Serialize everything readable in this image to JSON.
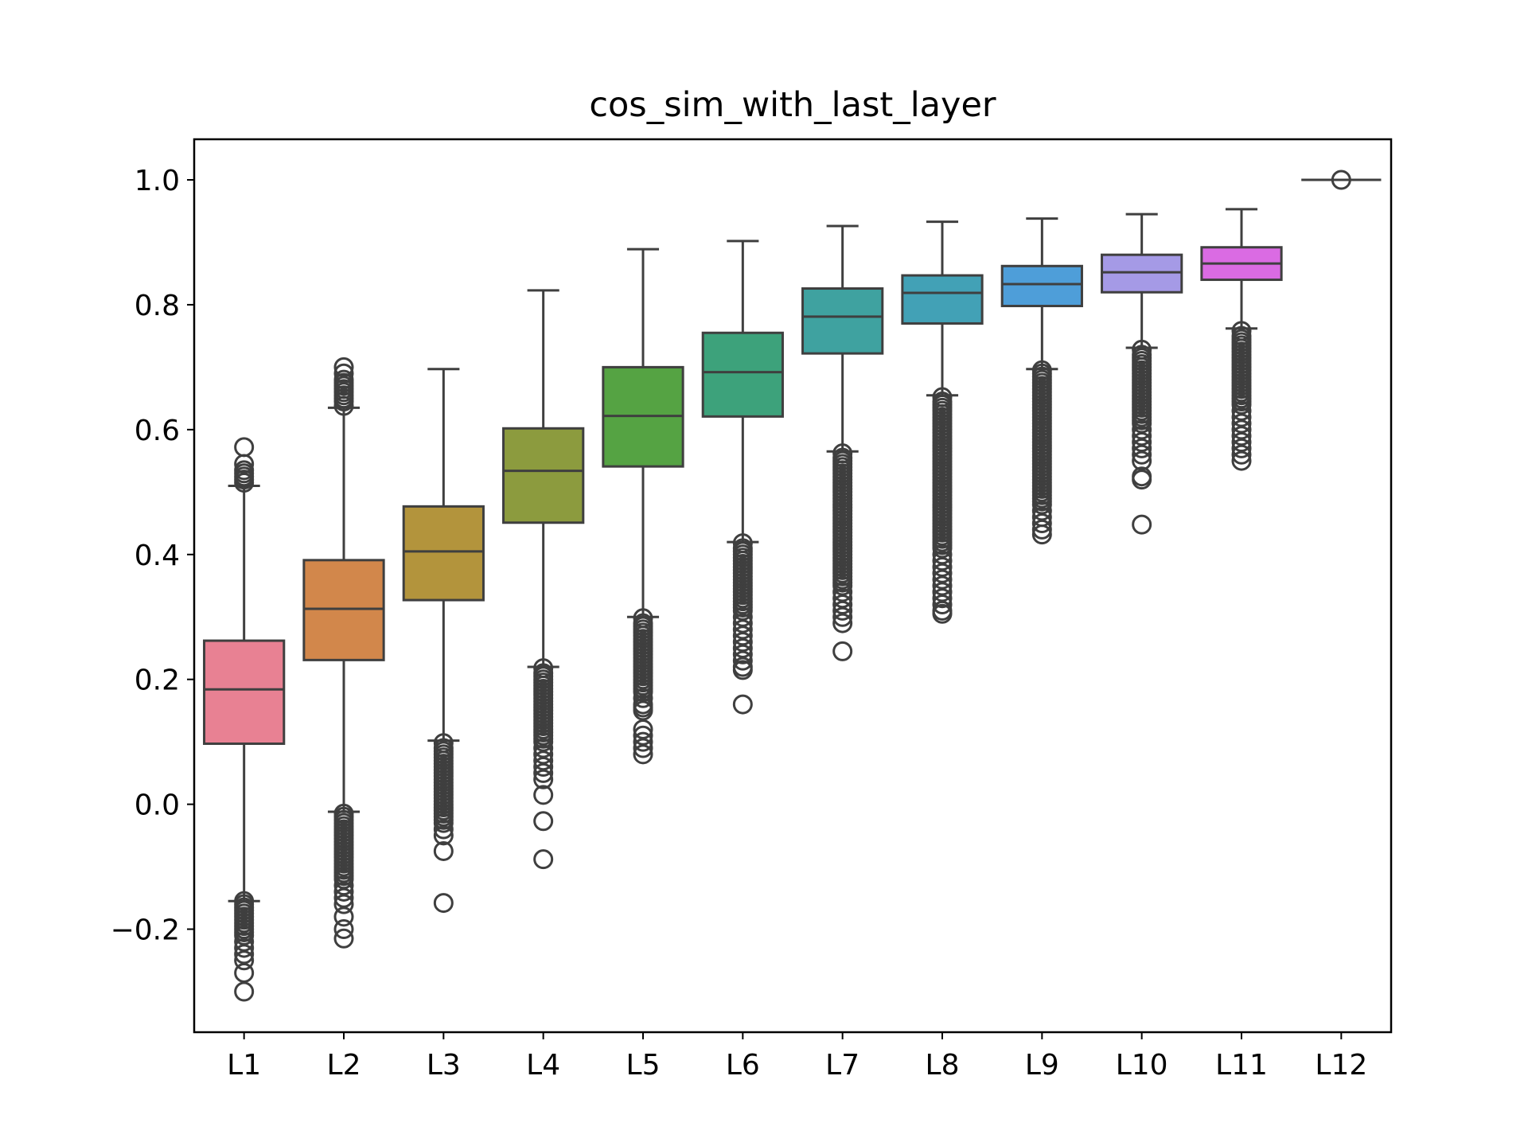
{
  "chart_data": {
    "type": "box",
    "title": "cos_sim_with_last_layer",
    "xlabel": "",
    "ylabel": "",
    "ylim": [
      -0.365,
      1.065
    ],
    "yticks": [
      -0.2,
      0.0,
      0.2,
      0.4,
      0.6,
      0.8,
      1.0
    ],
    "ytick_labels": [
      "−0.2",
      "0.0",
      "0.2",
      "0.4",
      "0.6",
      "0.8",
      "1.0"
    ],
    "grid": false,
    "legend": "none",
    "categories": [
      "L1",
      "L2",
      "L3",
      "L4",
      "L5",
      "L6",
      "L7",
      "L8",
      "L9",
      "L10",
      "L11",
      "L12"
    ],
    "boxes": [
      {
        "name": "L1",
        "color": "#e88193",
        "whislo": -0.155,
        "q1": 0.097,
        "med": 0.184,
        "q3": 0.262,
        "whishi": 0.51,
        "fliers_low": [
          -0.155,
          -0.16,
          -0.165,
          -0.17,
          -0.175,
          -0.18,
          -0.185,
          -0.19,
          -0.195,
          -0.2,
          -0.205,
          -0.21,
          -0.22,
          -0.23,
          -0.24,
          -0.25,
          -0.27,
          -0.3
        ],
        "fliers_high": [
          0.515,
          0.52,
          0.525,
          0.53,
          0.535,
          0.545,
          0.572
        ]
      },
      {
        "name": "L2",
        "color": "#d2874b",
        "whislo": -0.012,
        "q1": 0.231,
        "med": 0.313,
        "q3": 0.391,
        "whishi": 0.635,
        "fliers_low": [
          -0.015,
          -0.02,
          -0.025,
          -0.03,
          -0.035,
          -0.04,
          -0.045,
          -0.05,
          -0.055,
          -0.06,
          -0.065,
          -0.07,
          -0.075,
          -0.08,
          -0.085,
          -0.09,
          -0.095,
          -0.1,
          -0.105,
          -0.11,
          -0.115,
          -0.12,
          -0.13,
          -0.14,
          -0.15,
          -0.16,
          -0.18,
          -0.2,
          -0.215
        ],
        "fliers_high": [
          0.638,
          0.645,
          0.65,
          0.655,
          0.66,
          0.665,
          0.67,
          0.675,
          0.68,
          0.69,
          0.7
        ]
      },
      {
        "name": "L3",
        "color": "#b3943c",
        "whislo": 0.102,
        "q1": 0.327,
        "med": 0.405,
        "q3": 0.477,
        "whishi": 0.697,
        "fliers_low": [
          0.098,
          0.09,
          0.085,
          0.08,
          0.075,
          0.07,
          0.065,
          0.06,
          0.055,
          0.05,
          0.045,
          0.04,
          0.035,
          0.03,
          0.025,
          0.02,
          0.015,
          0.01,
          0.005,
          0.0,
          -0.005,
          -0.01,
          -0.015,
          -0.02,
          -0.025,
          -0.03,
          -0.04,
          -0.05,
          -0.075,
          -0.158
        ],
        "fliers_high": []
      },
      {
        "name": "L4",
        "color": "#8c9b3e",
        "whislo": 0.22,
        "q1": 0.451,
        "med": 0.534,
        "q3": 0.602,
        "whishi": 0.823,
        "fliers_low": [
          0.218,
          0.21,
          0.205,
          0.2,
          0.195,
          0.19,
          0.185,
          0.18,
          0.175,
          0.17,
          0.165,
          0.16,
          0.155,
          0.15,
          0.145,
          0.14,
          0.135,
          0.13,
          0.125,
          0.12,
          0.115,
          0.11,
          0.105,
          0.1,
          0.09,
          0.08,
          0.07,
          0.06,
          0.05,
          0.04,
          0.015,
          -0.027,
          -0.088
        ],
        "fliers_high": []
      },
      {
        "name": "L5",
        "color": "#55a343",
        "whislo": 0.3,
        "q1": 0.541,
        "med": 0.622,
        "q3": 0.7,
        "whishi": 0.889,
        "fliers_low": [
          0.298,
          0.29,
          0.285,
          0.28,
          0.275,
          0.27,
          0.265,
          0.26,
          0.255,
          0.25,
          0.245,
          0.24,
          0.235,
          0.23,
          0.225,
          0.22,
          0.215,
          0.21,
          0.205,
          0.2,
          0.195,
          0.19,
          0.185,
          0.18,
          0.17,
          0.16,
          0.155,
          0.15,
          0.12,
          0.11,
          0.1,
          0.09,
          0.08
        ],
        "fliers_high": []
      },
      {
        "name": "L6",
        "color": "#3da27b",
        "whislo": 0.42,
        "q1": 0.621,
        "med": 0.692,
        "q3": 0.755,
        "whishi": 0.902,
        "fliers_low": [
          0.418,
          0.41,
          0.405,
          0.4,
          0.395,
          0.39,
          0.385,
          0.38,
          0.375,
          0.37,
          0.365,
          0.36,
          0.355,
          0.35,
          0.345,
          0.34,
          0.335,
          0.33,
          0.325,
          0.32,
          0.315,
          0.31,
          0.3,
          0.29,
          0.28,
          0.27,
          0.26,
          0.25,
          0.24,
          0.23,
          0.22,
          0.215,
          0.16
        ],
        "fliers_high": []
      },
      {
        "name": "L7",
        "color": "#3fa2a0",
        "whislo": 0.565,
        "q1": 0.722,
        "med": 0.781,
        "q3": 0.826,
        "whishi": 0.926,
        "fliers_low": [
          0.562,
          0.555,
          0.55,
          0.545,
          0.54,
          0.535,
          0.53,
          0.525,
          0.52,
          0.515,
          0.51,
          0.505,
          0.5,
          0.495,
          0.49,
          0.485,
          0.48,
          0.475,
          0.47,
          0.465,
          0.46,
          0.455,
          0.45,
          0.445,
          0.44,
          0.435,
          0.43,
          0.425,
          0.42,
          0.415,
          0.41,
          0.405,
          0.4,
          0.395,
          0.39,
          0.385,
          0.38,
          0.375,
          0.37,
          0.365,
          0.36,
          0.355,
          0.35,
          0.34,
          0.33,
          0.32,
          0.31,
          0.3,
          0.29,
          0.245
        ],
        "fliers_high": []
      },
      {
        "name": "L8",
        "color": "#42a1b6",
        "whislo": 0.655,
        "q1": 0.77,
        "med": 0.819,
        "q3": 0.847,
        "whishi": 0.933,
        "fliers_low": [
          0.652,
          0.645,
          0.64,
          0.635,
          0.63,
          0.625,
          0.62,
          0.615,
          0.61,
          0.605,
          0.6,
          0.595,
          0.59,
          0.585,
          0.58,
          0.575,
          0.57,
          0.565,
          0.56,
          0.555,
          0.55,
          0.545,
          0.54,
          0.535,
          0.53,
          0.525,
          0.52,
          0.515,
          0.51,
          0.505,
          0.5,
          0.495,
          0.49,
          0.485,
          0.48,
          0.475,
          0.47,
          0.465,
          0.46,
          0.455,
          0.45,
          0.445,
          0.44,
          0.435,
          0.43,
          0.425,
          0.42,
          0.415,
          0.41,
          0.4,
          0.39,
          0.38,
          0.37,
          0.36,
          0.35,
          0.34,
          0.33,
          0.32,
          0.31,
          0.305
        ],
        "fliers_high": []
      },
      {
        "name": "L9",
        "color": "#4e9ed9",
        "whislo": 0.697,
        "q1": 0.798,
        "med": 0.833,
        "q3": 0.862,
        "whishi": 0.938,
        "fliers_low": [
          0.695,
          0.69,
          0.685,
          0.68,
          0.675,
          0.67,
          0.665,
          0.66,
          0.655,
          0.65,
          0.645,
          0.64,
          0.635,
          0.63,
          0.625,
          0.62,
          0.615,
          0.61,
          0.605,
          0.6,
          0.595,
          0.59,
          0.585,
          0.58,
          0.575,
          0.57,
          0.565,
          0.56,
          0.555,
          0.55,
          0.545,
          0.54,
          0.535,
          0.53,
          0.525,
          0.52,
          0.515,
          0.51,
          0.505,
          0.5,
          0.495,
          0.49,
          0.485,
          0.48,
          0.47,
          0.46,
          0.45,
          0.44,
          0.432
        ],
        "fliers_high": []
      },
      {
        "name": "L10",
        "color": "#a59ae6",
        "whislo": 0.731,
        "q1": 0.82,
        "med": 0.852,
        "q3": 0.88,
        "whishi": 0.945,
        "fliers_low": [
          0.728,
          0.72,
          0.715,
          0.71,
          0.705,
          0.7,
          0.695,
          0.69,
          0.685,
          0.68,
          0.675,
          0.67,
          0.665,
          0.66,
          0.655,
          0.65,
          0.645,
          0.64,
          0.635,
          0.63,
          0.625,
          0.62,
          0.615,
          0.61,
          0.6,
          0.59,
          0.58,
          0.57,
          0.56,
          0.55,
          0.525,
          0.52,
          0.448
        ],
        "fliers_high": []
      },
      {
        "name": "L11",
        "color": "#da6be3",
        "whislo": 0.762,
        "q1": 0.84,
        "med": 0.866,
        "q3": 0.892,
        "whishi": 0.953,
        "fliers_low": [
          0.758,
          0.75,
          0.745,
          0.74,
          0.735,
          0.73,
          0.725,
          0.72,
          0.715,
          0.71,
          0.705,
          0.7,
          0.695,
          0.69,
          0.685,
          0.68,
          0.675,
          0.67,
          0.665,
          0.66,
          0.655,
          0.65,
          0.645,
          0.64,
          0.63,
          0.62,
          0.61,
          0.6,
          0.59,
          0.58,
          0.57,
          0.56,
          0.55
        ],
        "fliers_high": []
      },
      {
        "name": "L12",
        "color": "#e86fb4",
        "whislo": 1.0,
        "q1": 1.0,
        "med": 1.0,
        "q3": 1.0,
        "whishi": 1.0,
        "fliers_low": [],
        "fliers_high": [
          1.0
        ]
      }
    ]
  }
}
